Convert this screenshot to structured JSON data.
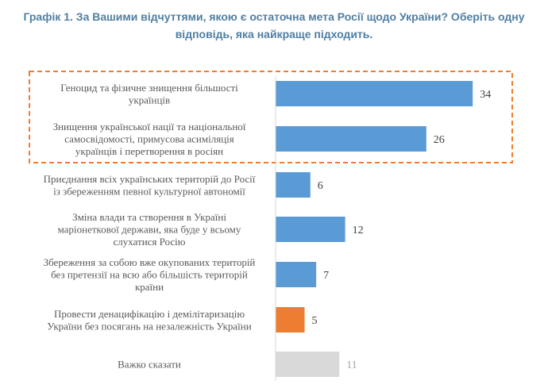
{
  "chart_data": {
    "type": "bar",
    "orientation": "horizontal",
    "title": "Графік 1. За Вашими відчуттями, якою є остаточна мета Росії щодо України? Оберіть одну відповідь, яка найкраще підходить.",
    "categories": [
      [
        "Геноцид та фізичне знищення більшості",
        "українців"
      ],
      [
        "Знищення української нації та національної",
        "самосвідомості, примусова асиміляція",
        "українців і перетворення в росіян"
      ],
      [
        "Приєднання всіх українських територій до Росії",
        "із збереженням певної культурної автономії"
      ],
      [
        "Зміна влади та створення в Україні",
        "маріонеткової держави, яка буде у всьому",
        "слухатися Росію"
      ],
      [
        "Збереження за собою вже окупованих територій",
        "без претензії на всю або більшість територій",
        "країни"
      ],
      [
        "Провести денацифікацію і демілітаризацію",
        "України без посягань на незалежність України"
      ],
      [
        "Важко сказати"
      ]
    ],
    "values": [
      34,
      26,
      6,
      12,
      7,
      5,
      11
    ],
    "bar_colors": [
      "#5b9bd5",
      "#5b9bd5",
      "#5b9bd5",
      "#5b9bd5",
      "#5b9bd5",
      "#ed7d31",
      "#d9d9d9"
    ],
    "value_label_colors": [
      "#404040",
      "#404040",
      "#404040",
      "#404040",
      "#404040",
      "#404040",
      "#a6a6a6"
    ],
    "highlight": {
      "from_category": 0,
      "to_category": 1,
      "color": "#ed7d31",
      "style": "dashed"
    },
    "xlim": [
      0,
      40
    ],
    "grid": false,
    "legend": "none"
  }
}
